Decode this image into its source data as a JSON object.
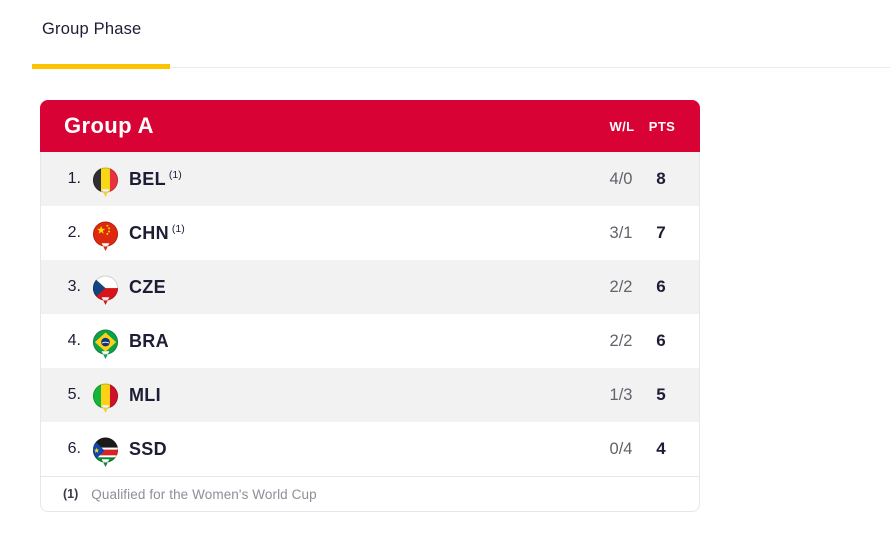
{
  "tab": {
    "label": "Group Phase"
  },
  "table": {
    "title": "Group A",
    "columns": {
      "wl": "W/L",
      "pts": "PTS"
    },
    "rows": [
      {
        "rank": "1.",
        "code": "BEL",
        "note": "(1)",
        "flag": "belgium-flag",
        "wl": "4/0",
        "pts": "8"
      },
      {
        "rank": "2.",
        "code": "CHN",
        "note": "(1)",
        "flag": "china-flag",
        "wl": "3/1",
        "pts": "7"
      },
      {
        "rank": "3.",
        "code": "CZE",
        "note": "",
        "flag": "czech-republic-flag",
        "wl": "2/2",
        "pts": "6"
      },
      {
        "rank": "4.",
        "code": "BRA",
        "note": "",
        "flag": "brazil-flag",
        "wl": "2/2",
        "pts": "6"
      },
      {
        "rank": "5.",
        "code": "MLI",
        "note": "",
        "flag": "mali-flag",
        "wl": "1/3",
        "pts": "5"
      },
      {
        "rank": "6.",
        "code": "SSD",
        "note": "",
        "flag": "south-sudan-flag",
        "wl": "0/4",
        "pts": "4"
      }
    ],
    "footnote": {
      "marker": "(1)",
      "text": "Qualified for the Women's World Cup"
    }
  },
  "colors": {
    "accent_red": "#D90234",
    "accent_yellow": "#FDC300",
    "text_dark": "#1D1D35",
    "wl_value_gray": "#62626B",
    "row_alt_gray": "#F2F2F3",
    "border_gray": "#E7E7EA",
    "footnote_gray": "#8E8E99"
  }
}
